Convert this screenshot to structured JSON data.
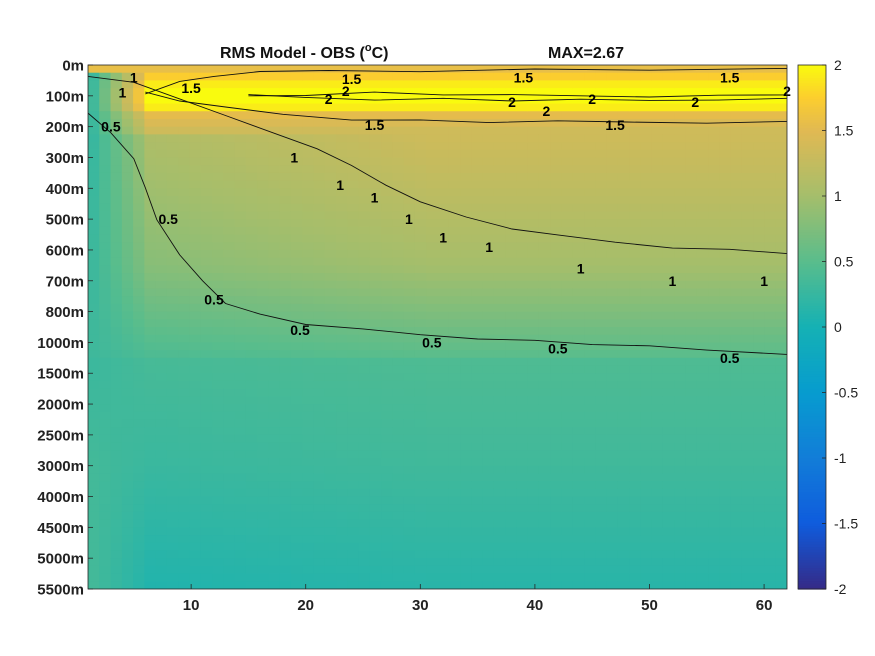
{
  "chart_data": {
    "type": "heatmap",
    "title_main": "RMS Model - OBS (",
    "title_sup": "o",
    "title_unit": "C)",
    "title_max": "MAX=2.67",
    "x_ticks": [
      10,
      20,
      30,
      40,
      50,
      60
    ],
    "x_range": [
      1,
      62
    ],
    "y_tick_labels": [
      "0m",
      "100m",
      "200m",
      "300m",
      "400m",
      "500m",
      "600m",
      "700m",
      "800m",
      "1000m",
      "1500m",
      "2000m",
      "2500m",
      "3000m",
      "4000m",
      "4500m",
      "5000m",
      "5500m"
    ],
    "colorbar": {
      "range": [
        -2,
        2
      ],
      "ticks": [
        2,
        1.5,
        1,
        0.5,
        0,
        -0.5,
        -1,
        -1.5,
        -2
      ],
      "tick_labels": [
        "2",
        "1.5",
        "1",
        "0.5",
        "0",
        "-0.5",
        "-1",
        "-1.5",
        "-2"
      ],
      "colormap": "parula"
    },
    "contour_levels": [
      0.5,
      1,
      1.5,
      2
    ],
    "contours": [
      {
        "level": 0.5,
        "points": [
          [
            1,
            1.6
          ],
          [
            3,
            2.2
          ],
          [
            5,
            3.0
          ],
          [
            6,
            4.0
          ],
          [
            7,
            5.0
          ],
          [
            9,
            6.2
          ],
          [
            11,
            7.0
          ],
          [
            13,
            7.7
          ],
          [
            16,
            8.1
          ],
          [
            20,
            8.4
          ],
          [
            25,
            8.6
          ],
          [
            30,
            8.75
          ],
          [
            35,
            8.85
          ],
          [
            40,
            8.95
          ],
          [
            45,
            9.05
          ],
          [
            50,
            9.15
          ],
          [
            55,
            9.25
          ],
          [
            62,
            9.35
          ]
        ]
      },
      {
        "level": 1,
        "points": [
          [
            1,
            0.35
          ],
          [
            5,
            0.6
          ],
          [
            9,
            1.1
          ],
          [
            13,
            1.6
          ],
          [
            17,
            2.2
          ],
          [
            21,
            2.7
          ],
          [
            24,
            3.3
          ],
          [
            27,
            3.9
          ],
          [
            30,
            4.4
          ],
          [
            34,
            4.95
          ],
          [
            38,
            5.3
          ],
          [
            42,
            5.55
          ],
          [
            47,
            5.75
          ],
          [
            52,
            5.9
          ],
          [
            57,
            6.0
          ],
          [
            62,
            6.1
          ]
        ]
      },
      {
        "level": 1.5,
        "points": [
          [
            6,
            0.9
          ],
          [
            9,
            1.15
          ],
          [
            13,
            1.4
          ],
          [
            18,
            1.6
          ],
          [
            24,
            1.75
          ],
          [
            30,
            1.8
          ],
          [
            36,
            1.85
          ],
          [
            42,
            1.85
          ],
          [
            48,
            1.85
          ],
          [
            55,
            1.85
          ],
          [
            62,
            1.85
          ]
        ]
      },
      {
        "level": 1.5,
        "points": [
          [
            6,
            0.9
          ],
          [
            9,
            0.55
          ],
          [
            12,
            0.35
          ],
          [
            16,
            0.25
          ],
          [
            22,
            0.18
          ],
          [
            30,
            0.18
          ],
          [
            40,
            0.15
          ],
          [
            50,
            0.15
          ],
          [
            62,
            0.15
          ]
        ]
      },
      {
        "level": 2,
        "points": [
          [
            15,
            1.0
          ],
          [
            20,
            0.95
          ],
          [
            26,
            0.9
          ],
          [
            32,
            0.95
          ],
          [
            38,
            1.0
          ],
          [
            44,
            1.0
          ],
          [
            50,
            1.0
          ],
          [
            56,
            1.0
          ],
          [
            62,
            0.95
          ]
        ]
      },
      {
        "level": 2,
        "points": [
          [
            15,
            1.0
          ],
          [
            20,
            1.05
          ],
          [
            26,
            1.1
          ],
          [
            32,
            1.1
          ],
          [
            38,
            1.15
          ],
          [
            44,
            1.15
          ],
          [
            50,
            1.15
          ],
          [
            56,
            1.1
          ],
          [
            62,
            1.1
          ]
        ]
      }
    ],
    "contour_labels": [
      {
        "text": "1.5",
        "x": 10,
        "y": 0.75
      },
      {
        "text": "1.5",
        "x": 24,
        "y": 0.45
      },
      {
        "text": "1.5",
        "x": 39,
        "y": 0.4
      },
      {
        "text": "1.5",
        "x": 57,
        "y": 0.4
      },
      {
        "text": "2",
        "x": 22,
        "y": 1.1
      },
      {
        "text": "2",
        "x": 23.5,
        "y": 0.85
      },
      {
        "text": "2",
        "x": 38,
        "y": 1.2
      },
      {
        "text": "2",
        "x": 41,
        "y": 1.5
      },
      {
        "text": "2",
        "x": 45,
        "y": 1.1
      },
      {
        "text": "2",
        "x": 54,
        "y": 1.2
      },
      {
        "text": "2",
        "x": 62,
        "y": 0.85
      },
      {
        "text": "1.5",
        "x": 26,
        "y": 1.95
      },
      {
        "text": "1.5",
        "x": 47,
        "y": 1.95
      },
      {
        "text": "1",
        "x": 4,
        "y": 0.9
      },
      {
        "text": "1",
        "x": 5,
        "y": 0.4
      },
      {
        "text": "1",
        "x": 19,
        "y": 3.0
      },
      {
        "text": "1",
        "x": 23,
        "y": 3.9
      },
      {
        "text": "1",
        "x": 26,
        "y": 4.3
      },
      {
        "text": "1",
        "x": 29,
        "y": 5.0
      },
      {
        "text": "1",
        "x": 32,
        "y": 5.6
      },
      {
        "text": "1",
        "x": 36,
        "y": 5.9
      },
      {
        "text": "1",
        "x": 44,
        "y": 6.6
      },
      {
        "text": "1",
        "x": 52,
        "y": 7.0
      },
      {
        "text": "1",
        "x": 60,
        "y": 7.0
      },
      {
        "text": "0.5",
        "x": 3,
        "y": 2.0
      },
      {
        "text": "0.5",
        "x": 8,
        "y": 5.0
      },
      {
        "text": "0.5",
        "x": 12,
        "y": 7.6
      },
      {
        "text": "0.5",
        "x": 19.5,
        "y": 8.6
      },
      {
        "text": "0.5",
        "x": 31,
        "y": 9.0
      },
      {
        "text": "0.5",
        "x": 42,
        "y": 9.2
      },
      {
        "text": "0.5",
        "x": 57,
        "y": 9.5
      }
    ]
  }
}
